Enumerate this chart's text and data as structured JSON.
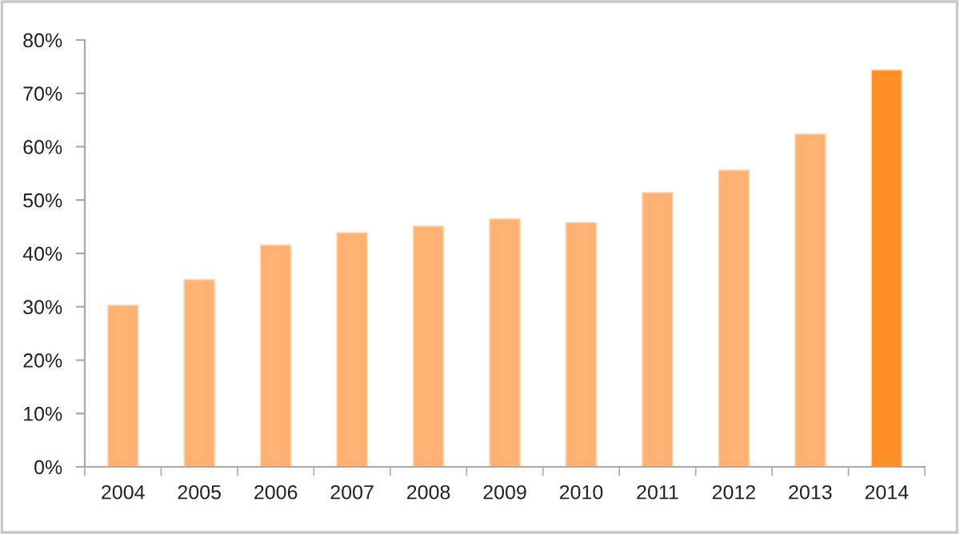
{
  "chart_data": {
    "type": "bar",
    "categories": [
      "2004",
      "2005",
      "2006",
      "2007",
      "2008",
      "2009",
      "2010",
      "2011",
      "2012",
      "2013",
      "2014"
    ],
    "values": [
      30.3,
      35.1,
      41.6,
      43.9,
      45.1,
      46.5,
      45.8,
      51.4,
      55.6,
      62.4,
      74.4
    ],
    "colors": [
      "#ffb273",
      "#ffb273",
      "#ffb273",
      "#ffb273",
      "#ffb273",
      "#ffb273",
      "#ffb273",
      "#ffb273",
      "#ffb273",
      "#ffb273",
      "#ff8f26"
    ],
    "ylim": [
      0,
      80
    ],
    "yticks": [
      {
        "value": 0,
        "label": "0%"
      },
      {
        "value": 10,
        "label": "10%"
      },
      {
        "value": 20,
        "label": "20%"
      },
      {
        "value": 30,
        "label": "30%"
      },
      {
        "value": 40,
        "label": "40%"
      },
      {
        "value": 50,
        "label": "50%"
      },
      {
        "value": 60,
        "label": "60%"
      },
      {
        "value": 70,
        "label": "70%"
      },
      {
        "value": 80,
        "label": "80%"
      }
    ],
    "grid": false,
    "legend": false
  }
}
